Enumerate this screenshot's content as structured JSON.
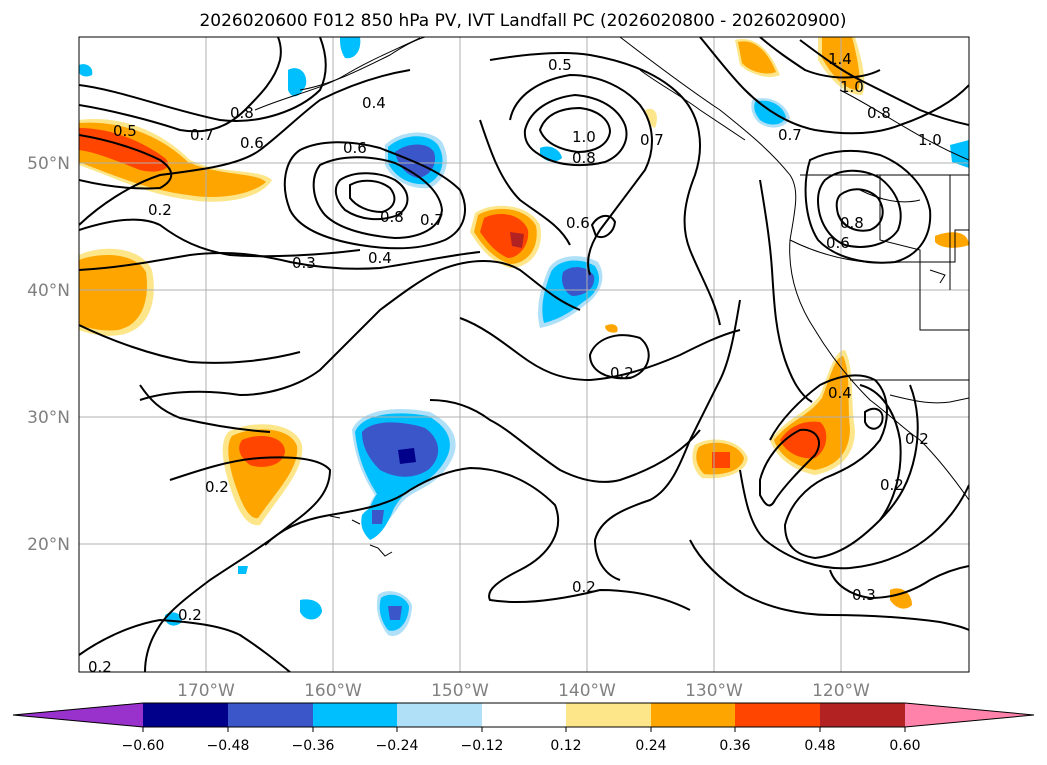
{
  "title": "2026020600 F012 850 hPa PV, IVT Landfall PC (2026020800 - 2026020900)",
  "map": {
    "lon_labels": [
      "170°W",
      "160°W",
      "150°W",
      "140°W",
      "130°W",
      "120°W"
    ],
    "lat_labels": [
      "50°N",
      "40°N",
      "30°N",
      "20°N"
    ],
    "contour_labels": [
      "0.5",
      "0.5",
      "0.7",
      "0.8",
      "0.6",
      "0.4",
      "0.6",
      "0.8",
      "0.7",
      "1.0",
      "0.8",
      "0.7",
      "0.6",
      "0.2",
      "0.3",
      "0.4",
      "0.2",
      "0.2",
      "0.2",
      "0.2",
      "0.2",
      "0.4",
      "0.2",
      "0.3",
      "1.4",
      "1.0",
      "0.8",
      "1.0",
      "0.7",
      "0.8",
      "0.6",
      "0.2"
    ]
  },
  "colorbar": {
    "tick_labels": [
      "−0.60",
      "−0.48",
      "−0.36",
      "−0.24",
      "−0.12",
      "0.12",
      "0.24",
      "0.36",
      "0.48",
      "0.60"
    ],
    "colors": [
      "#9932cc",
      "#00008b",
      "#3a56c8",
      "#00bfff",
      "#b0e0f8",
      "#ffffff",
      "#fde68a",
      "#ffa500",
      "#ff4500",
      "#b22222",
      "#ff82ab"
    ]
  }
}
